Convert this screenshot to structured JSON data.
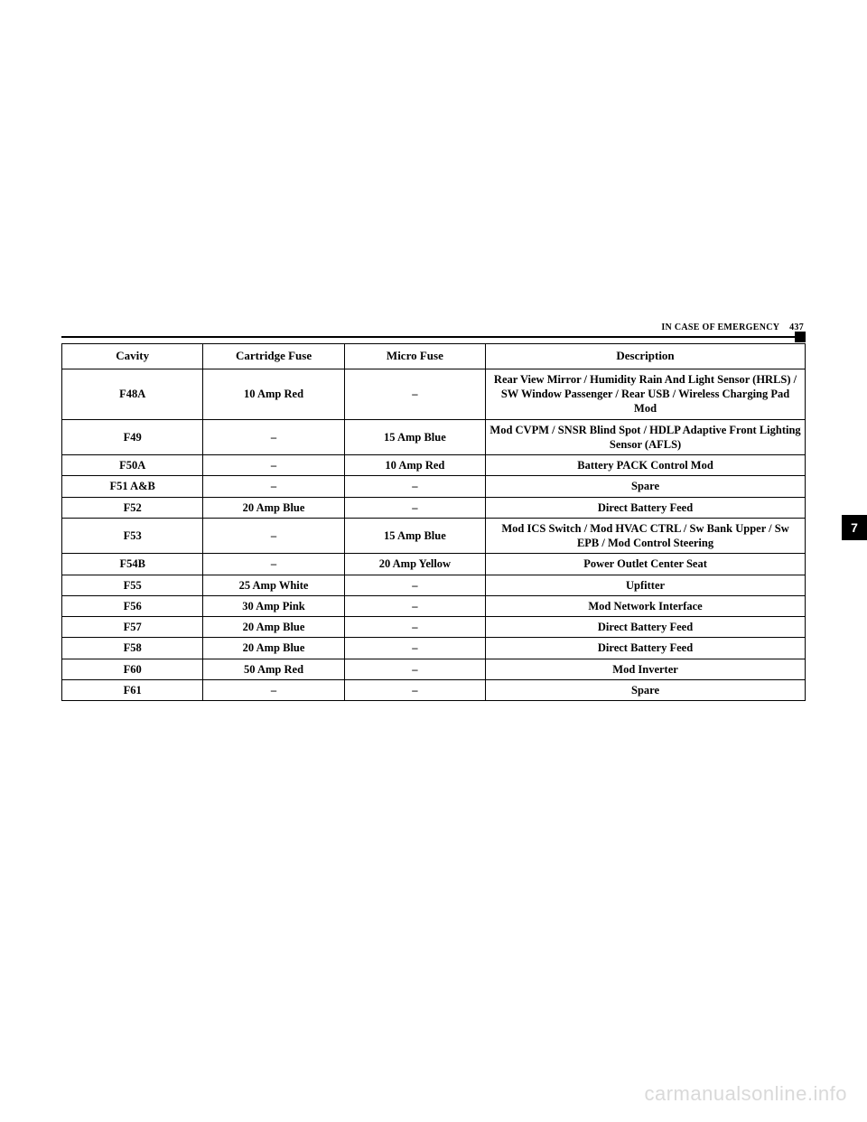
{
  "header": {
    "section": "IN CASE OF EMERGENCY",
    "page": "437"
  },
  "chapterTab": "7",
  "table": {
    "columns": [
      "Cavity",
      "Cartridge Fuse",
      "Micro Fuse",
      "Description"
    ],
    "rows": [
      [
        "F48A",
        "10 Amp Red",
        "–",
        "Rear View Mirror / Humidity Rain And Light Sensor (HRLS) / SW Window Passenger / Rear USB / Wireless Charging Pad Mod"
      ],
      [
        "F49",
        "–",
        "15 Amp Blue",
        "Mod CVPM / SNSR Blind Spot / HDLP Adaptive Front Lighting Sensor (AFLS)"
      ],
      [
        "F50A",
        "–",
        "10 Amp Red",
        "Battery PACK Control Mod"
      ],
      [
        "F51 A&B",
        "–",
        "–",
        "Spare"
      ],
      [
        "F52",
        "20 Amp Blue",
        "–",
        "Direct Battery Feed"
      ],
      [
        "F53",
        "–",
        "15 Amp Blue",
        "Mod ICS Switch / Mod HVAC CTRL / Sw Bank Upper / Sw EPB / Mod Control Steering"
      ],
      [
        "F54B",
        "–",
        "20 Amp Yellow",
        "Power Outlet Center Seat"
      ],
      [
        "F55",
        "25 Amp White",
        "–",
        "Upfitter"
      ],
      [
        "F56",
        "30 Amp Pink",
        "–",
        "Mod Network Interface"
      ],
      [
        "F57",
        "20 Amp Blue",
        "–",
        "Direct Battery Feed"
      ],
      [
        "F58",
        "20 Amp Blue",
        "–",
        "Direct Battery Feed"
      ],
      [
        "F60",
        "50 Amp Red",
        "–",
        "Mod Inverter"
      ],
      [
        "F61",
        "–",
        "–",
        "Spare"
      ]
    ]
  },
  "watermark": "carmanualsonline.info"
}
